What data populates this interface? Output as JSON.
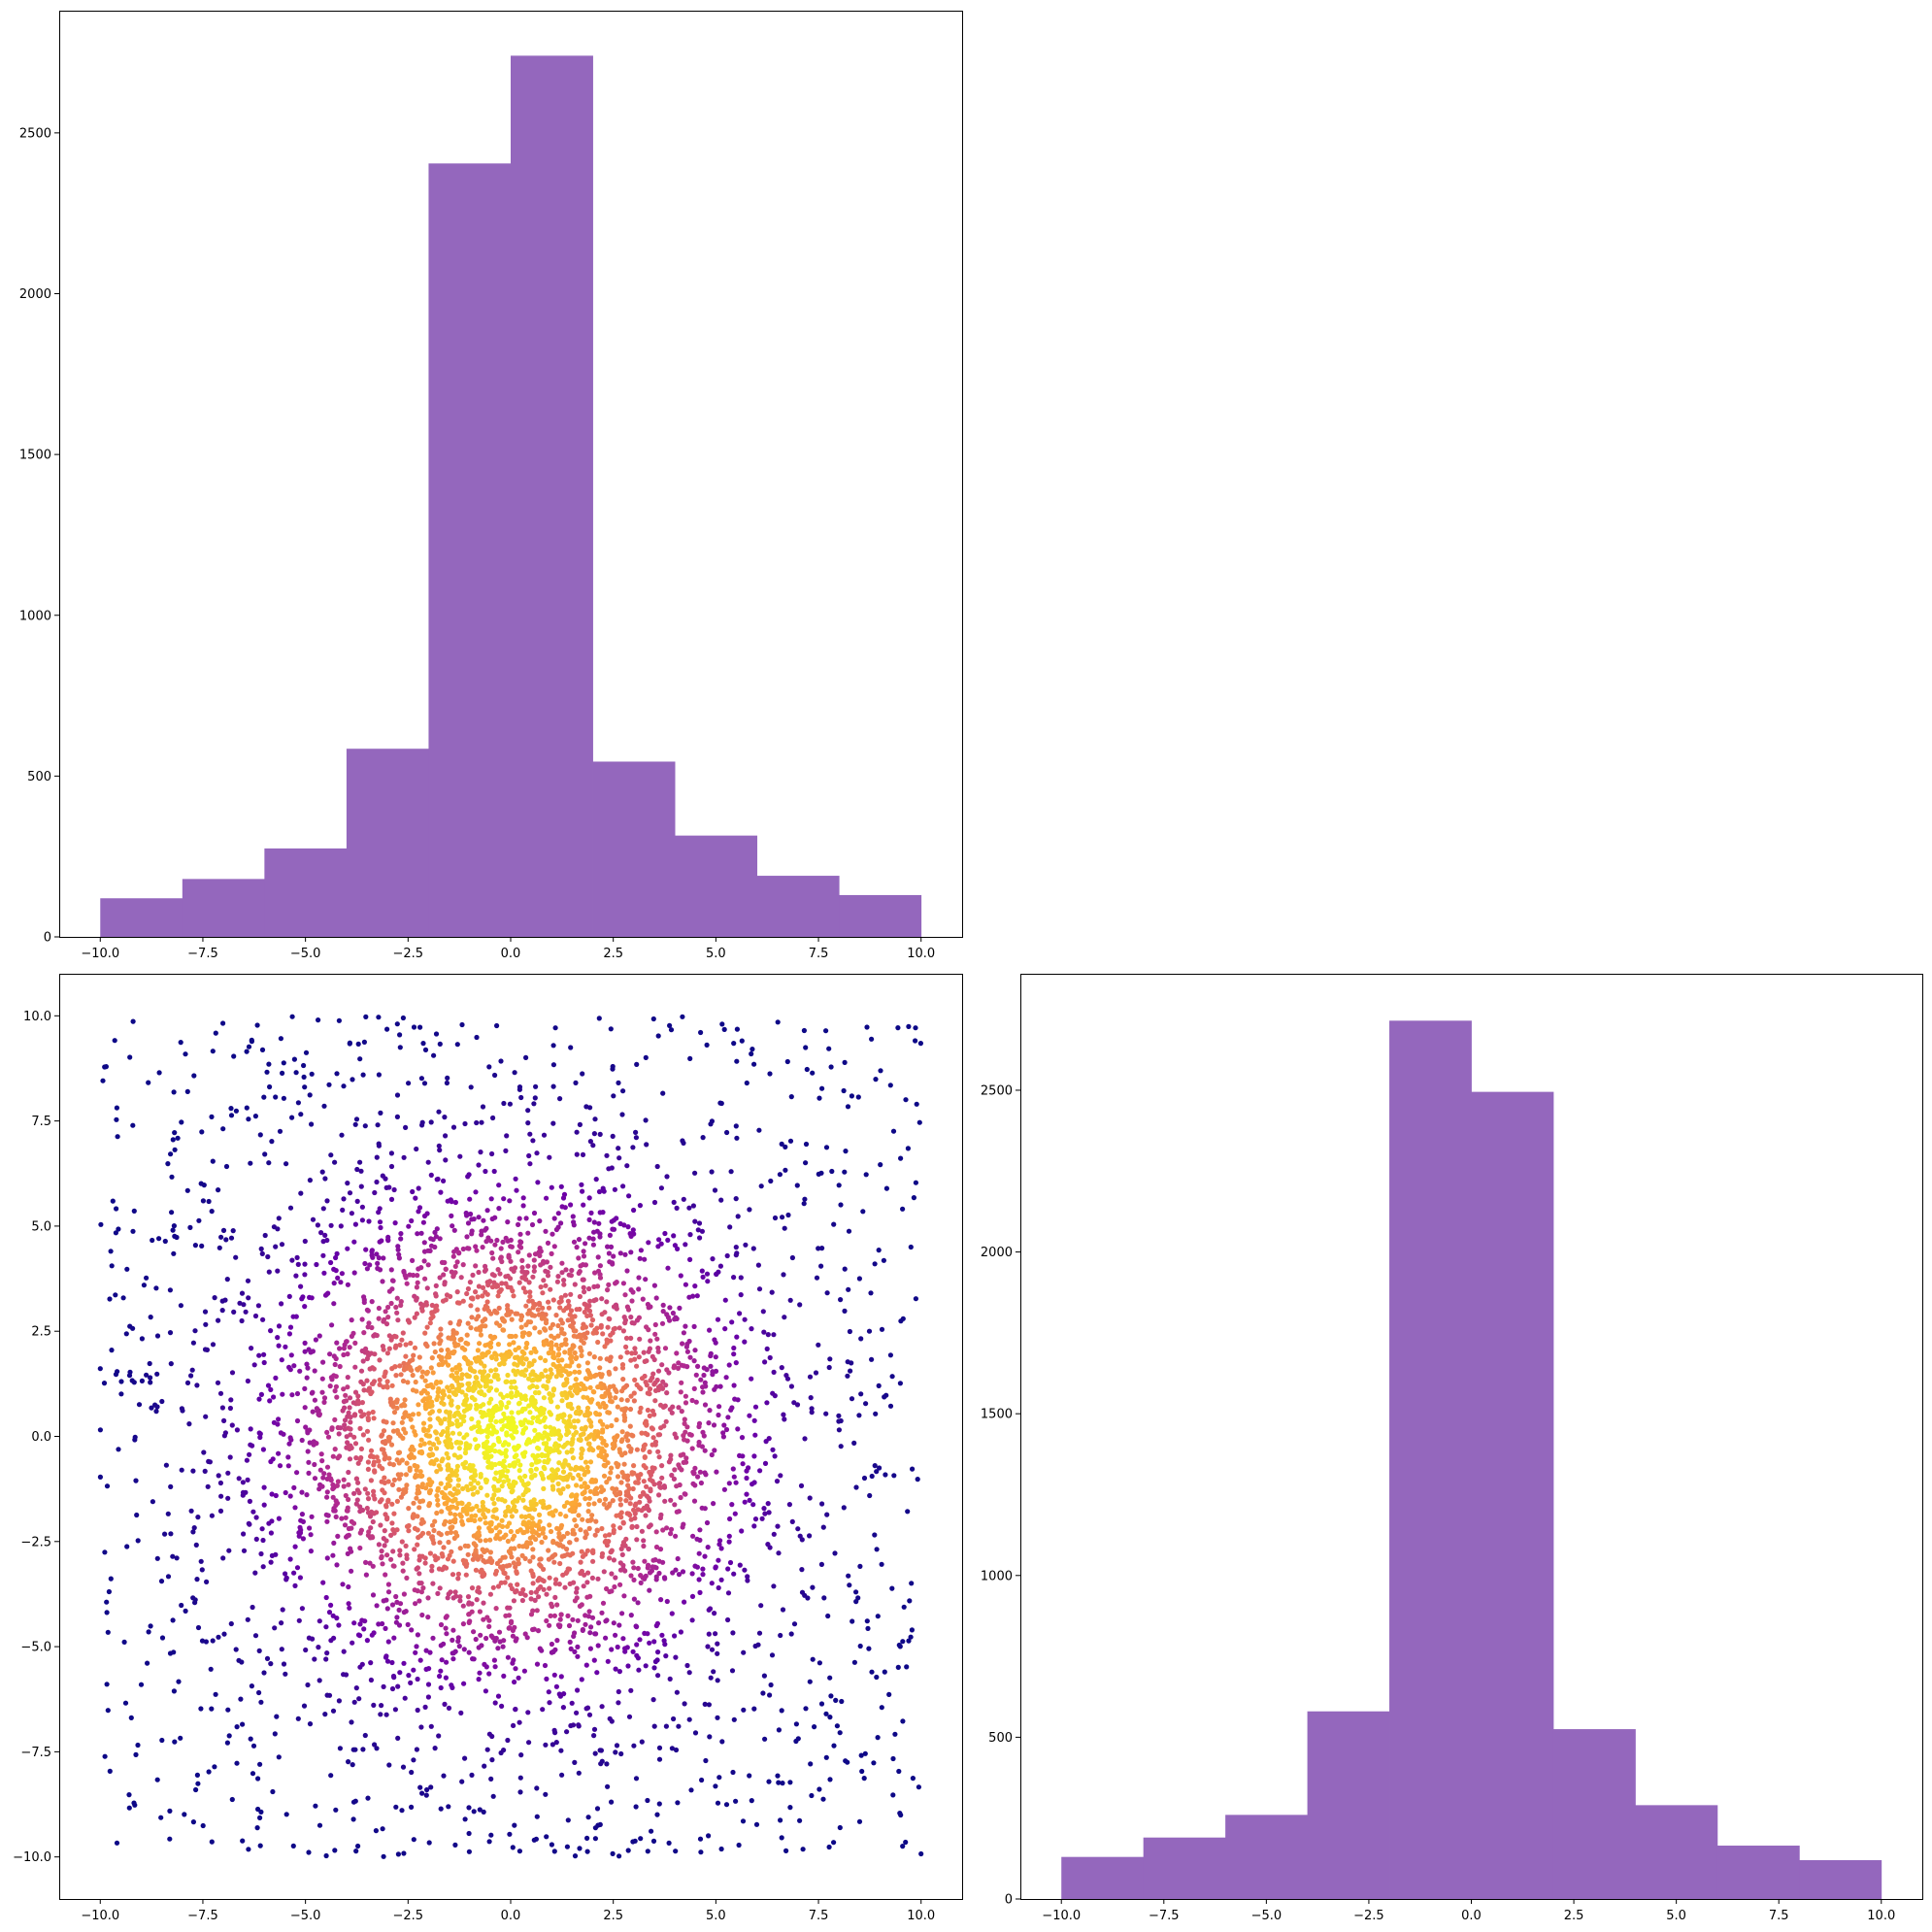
{
  "chart_data": [
    {
      "type": "bar",
      "subplot": "top-left",
      "description": "histogram",
      "bin_edges": [
        -10,
        -8,
        -6,
        -4,
        -2,
        0,
        2,
        4,
        6,
        8,
        10
      ],
      "values": [
        120,
        180,
        275,
        585,
        2405,
        2740,
        545,
        315,
        190,
        130
      ],
      "xlim": [
        -11,
        11
      ],
      "ylim": [
        0,
        2880
      ],
      "xticks": [
        -10,
        -7.5,
        -5,
        -2.5,
        0,
        2.5,
        5,
        7.5,
        10
      ],
      "xtick_labels": [
        "−10.0",
        "−7.5",
        "−5.0",
        "−2.5",
        "0.0",
        "2.5",
        "5.0",
        "7.5",
        "10.0"
      ],
      "yticks": [
        0,
        500,
        1000,
        1500,
        2000,
        2500
      ],
      "ytick_labels": [
        "0",
        "500",
        "1000",
        "1500",
        "2000",
        "2500"
      ],
      "grid": false,
      "color": "#9467bd"
    },
    {
      "type": "scatter",
      "subplot": "bottom-left",
      "description": "scatter of ~5000 points uniform in [-10,10]^2 with a dense gaussian core at the origin, colored by local density with the plasma colormap",
      "xlim": [
        -11,
        11
      ],
      "ylim": [
        -11,
        11
      ],
      "xticks": [
        -10,
        -7.5,
        -5,
        -2.5,
        0,
        2.5,
        5,
        7.5,
        10
      ],
      "xtick_labels": [
        "−10.0",
        "−7.5",
        "−5.0",
        "−2.5",
        "0.0",
        "2.5",
        "5.0",
        "7.5",
        "10.0"
      ],
      "yticks": [
        -10,
        -7.5,
        -5,
        -2.5,
        0,
        2.5,
        5,
        7.5,
        10
      ],
      "ytick_labels": [
        "−10.0",
        "−7.5",
        "−5.0",
        "−2.5",
        "0.0",
        "2.5",
        "5.0",
        "7.5",
        "10.0"
      ],
      "colormap": [
        "#0d0887",
        "#6a00a8",
        "#b12a90",
        "#e16462",
        "#fca636",
        "#f0f921"
      ],
      "grid": false
    },
    {
      "type": "bar",
      "subplot": "bottom-right",
      "description": "histogram",
      "bin_edges": [
        -10,
        -8,
        -6,
        -4,
        -2,
        0,
        2,
        4,
        6,
        8,
        10
      ],
      "values": [
        130,
        190,
        260,
        580,
        2715,
        2495,
        525,
        290,
        165,
        120
      ],
      "xlim": [
        -11,
        11
      ],
      "ylim": [
        0,
        2860
      ],
      "xticks": [
        -10,
        -7.5,
        -5,
        -2.5,
        0,
        2.5,
        5,
        7.5,
        10
      ],
      "xtick_labels": [
        "−10.0",
        "−7.5",
        "−5.0",
        "−2.5",
        "0.0",
        "2.5",
        "5.0",
        "7.5",
        "10.0"
      ],
      "yticks": [
        0,
        500,
        1000,
        1500,
        2000,
        2500
      ],
      "ytick_labels": [
        "0",
        "500",
        "1000",
        "1500",
        "2000",
        "2500"
      ],
      "grid": false,
      "color": "#9467bd"
    }
  ]
}
